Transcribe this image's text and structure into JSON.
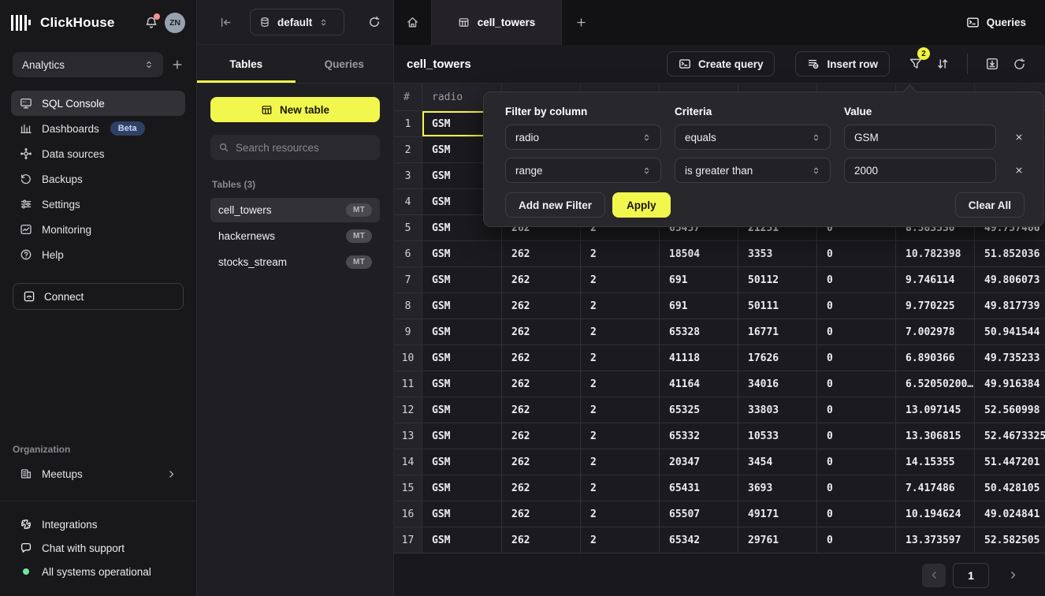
{
  "sidebar": {
    "brand": "ClickHouse",
    "avatar": "ZN",
    "workspace": "Analytics",
    "nav": [
      {
        "label": "SQL Console"
      },
      {
        "label": "Dashboards",
        "badge": "Beta"
      },
      {
        "label": "Data sources"
      },
      {
        "label": "Backups"
      },
      {
        "label": "Settings"
      },
      {
        "label": "Monitoring"
      },
      {
        "label": "Help"
      }
    ],
    "connect": "Connect",
    "org_label": "Organization",
    "meetups": "Meetups",
    "integrations": "Integrations",
    "chat": "Chat with support",
    "status": "All systems operational"
  },
  "resources": {
    "database": "default",
    "tab_tables": "Tables",
    "tab_queries": "Queries",
    "new_table": "New table",
    "search_placeholder": "Search resources",
    "section": "Tables (3)",
    "tables": [
      {
        "name": "cell_towers",
        "badge": "MT"
      },
      {
        "name": "hackernews",
        "badge": "MT"
      },
      {
        "name": "stocks_stream",
        "badge": "MT"
      }
    ]
  },
  "topbar": {
    "tab": "cell_towers",
    "queries": "Queries"
  },
  "toolbar": {
    "title": "cell_towers",
    "create_query": "Create query",
    "insert_row": "Insert row",
    "filter_count": "2"
  },
  "filter_panel": {
    "col_header": "Filter by column",
    "criteria_header": "Criteria",
    "value_header": "Value",
    "filters": [
      {
        "column": "radio",
        "criteria": "equals",
        "value": "GSM"
      },
      {
        "column": "range",
        "criteria": "is greater than",
        "value": "2000"
      }
    ],
    "add": "Add new Filter",
    "apply": "Apply",
    "clear": "Clear All"
  },
  "table": {
    "headers": [
      "#",
      "radio",
      "",
      "",
      "",
      "",
      "",
      "",
      ""
    ],
    "selected_cell": {
      "row": 0,
      "col": 1
    },
    "rows": [
      [
        "1",
        "GSM",
        "",
        "",
        "",
        "",
        "",
        "",
        ""
      ],
      [
        "2",
        "GSM",
        "",
        "",
        "",
        "",
        "",
        "",
        ""
      ],
      [
        "3",
        "GSM",
        "",
        "",
        "",
        "",
        "",
        "",
        ""
      ],
      [
        "4",
        "GSM",
        "",
        "",
        "",
        "",
        "",
        "",
        ""
      ],
      [
        "5",
        "GSM",
        "262",
        "2",
        "65457",
        "21251",
        "0",
        "8.583530",
        "49.757466"
      ],
      [
        "6",
        "GSM",
        "262",
        "2",
        "18504",
        "3353",
        "0",
        "10.782398",
        "51.852036"
      ],
      [
        "7",
        "GSM",
        "262",
        "2",
        "691",
        "50112",
        "0",
        "9.746114",
        "49.806073"
      ],
      [
        "8",
        "GSM",
        "262",
        "2",
        "691",
        "50111",
        "0",
        "9.770225",
        "49.817739"
      ],
      [
        "9",
        "GSM",
        "262",
        "2",
        "65328",
        "16771",
        "0",
        "7.002978",
        "50.941544"
      ],
      [
        "10",
        "GSM",
        "262",
        "2",
        "41118",
        "17626",
        "0",
        "6.890366",
        "49.735233"
      ],
      [
        "11",
        "GSM",
        "262",
        "2",
        "41164",
        "34016",
        "0",
        "6.52050200…",
        "49.916384"
      ],
      [
        "12",
        "GSM",
        "262",
        "2",
        "65325",
        "33803",
        "0",
        "13.097145",
        "52.560998"
      ],
      [
        "13",
        "GSM",
        "262",
        "2",
        "65332",
        "10533",
        "0",
        "13.306815",
        "52.4673325"
      ],
      [
        "14",
        "GSM",
        "262",
        "2",
        "20347",
        "3454",
        "0",
        "14.15355",
        "51.447201"
      ],
      [
        "15",
        "GSM",
        "262",
        "2",
        "65431",
        "3693",
        "0",
        "7.417486",
        "50.428105"
      ],
      [
        "16",
        "GSM",
        "262",
        "2",
        "65507",
        "49171",
        "0",
        "10.194624",
        "49.024841"
      ],
      [
        "17",
        "GSM",
        "262",
        "2",
        "65342",
        "29761",
        "0",
        "13.373597",
        "52.582505"
      ]
    ]
  },
  "pagination": {
    "page": "1"
  }
}
